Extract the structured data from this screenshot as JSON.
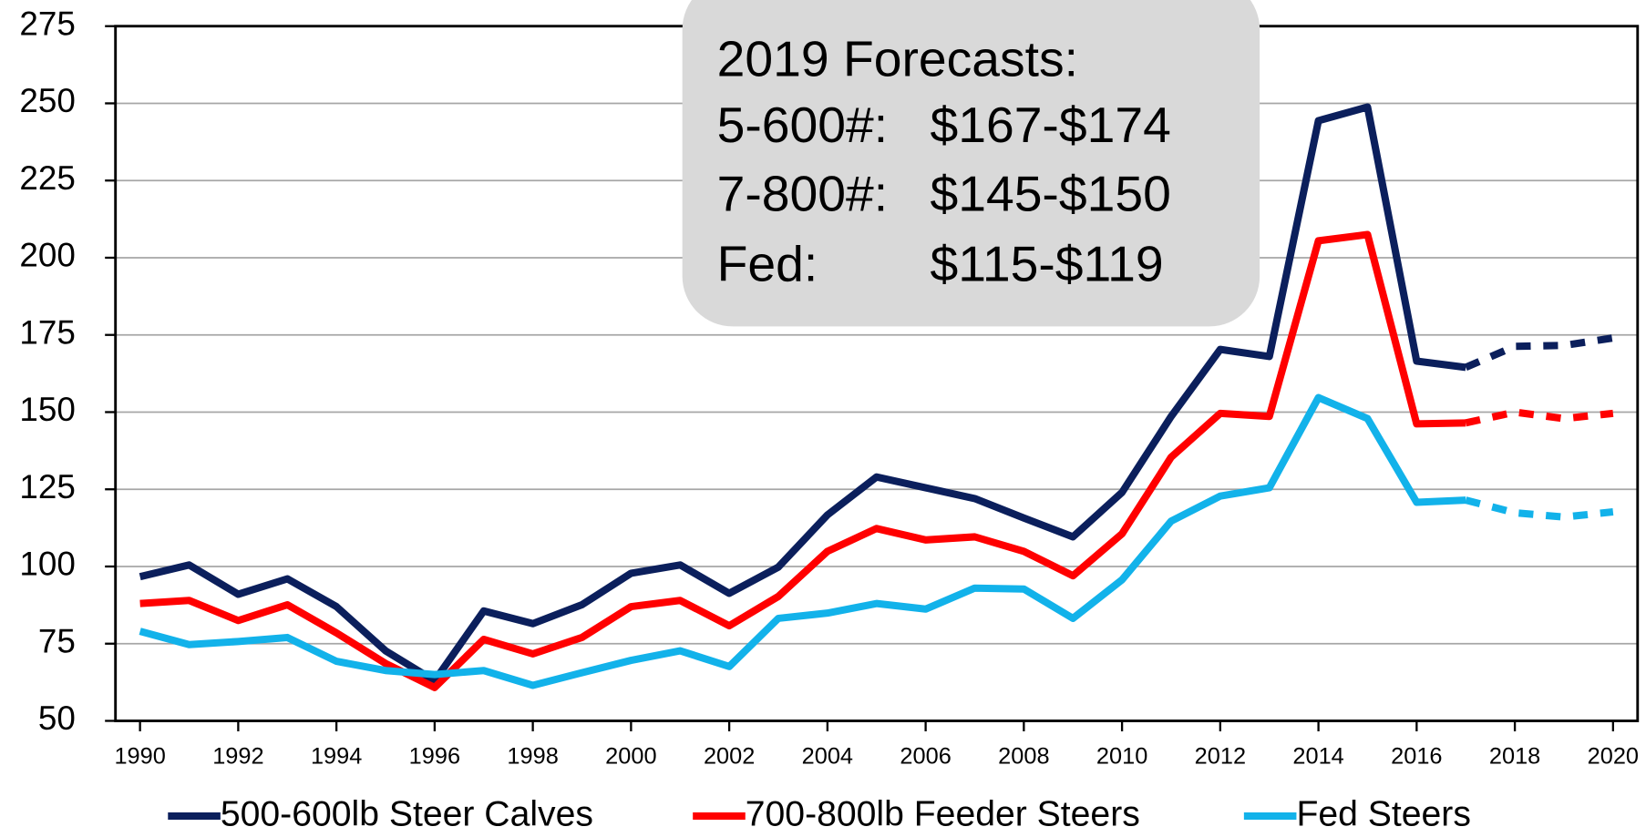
{
  "chart_data": {
    "type": "line",
    "x": [
      1990,
      1991,
      1992,
      1993,
      1994,
      1995,
      1996,
      1997,
      1998,
      1999,
      2000,
      2001,
      2002,
      2003,
      2004,
      2005,
      2006,
      2007,
      2008,
      2009,
      2010,
      2011,
      2012,
      2013,
      2014,
      2015,
      2016,
      2017,
      2018,
      2019,
      2020
    ],
    "xlim": [
      1989.5,
      2020.5
    ],
    "xticks": [
      1990,
      1992,
      1994,
      1996,
      1998,
      2000,
      2002,
      2004,
      2006,
      2008,
      2010,
      2012,
      2014,
      2016,
      2018,
      2020
    ],
    "ylim": [
      50,
      275
    ],
    "yticks": [
      50,
      75,
      100,
      125,
      150,
      175,
      200,
      225,
      250,
      275
    ],
    "grid": true,
    "dashed_from": 2017,
    "legend": "bottom",
    "series": [
      {
        "name": "500-600lb Steer Calves",
        "color": "#0b1f5c",
        "values": [
          96.7,
          100.5,
          91,
          96,
          87,
          72.7,
          63,
          85.6,
          81.5,
          87.6,
          97.8,
          100.5,
          91.3,
          99.8,
          116.7,
          129,
          125.5,
          122,
          115.7,
          109.6,
          124,
          148.6,
          170.3,
          168,
          244.4,
          248.8,
          166.5,
          164.5,
          171.3,
          171.6,
          174
        ]
      },
      {
        "name": "700-800lb Feeder Steers",
        "color": "#ff0000",
        "values": [
          88,
          89,
          82.5,
          87.6,
          78.5,
          68.6,
          60.8,
          76.4,
          71.7,
          77,
          87,
          89,
          80.8,
          90.3,
          104.9,
          112.3,
          108.6,
          109.6,
          104.9,
          97,
          110.6,
          135.4,
          149.6,
          148.6,
          205.5,
          207.5,
          146.2,
          146.5,
          150,
          147.9,
          149.6
        ]
      },
      {
        "name": "Fed Steers",
        "color": "#12b2ea",
        "values": [
          79,
          74.7,
          75.7,
          77,
          69.3,
          66.3,
          65,
          66.3,
          61.5,
          65.6,
          69.6,
          72.7,
          67.6,
          83.2,
          84.9,
          88,
          86.2,
          93,
          92.7,
          83.2,
          95.7,
          114.7,
          122.8,
          125.5,
          154.7,
          147.9,
          120.8,
          121.5,
          117.4,
          116,
          117.7
        ]
      }
    ],
    "annotation": {
      "title": "2019 Forecasts:",
      "lines": [
        {
          "label": "5-600#:",
          "range": "$167-$174"
        },
        {
          "label": "7-800#:",
          "range": "$145-$150"
        },
        {
          "label": "Fed:",
          "range": "$115-$119"
        }
      ]
    }
  }
}
